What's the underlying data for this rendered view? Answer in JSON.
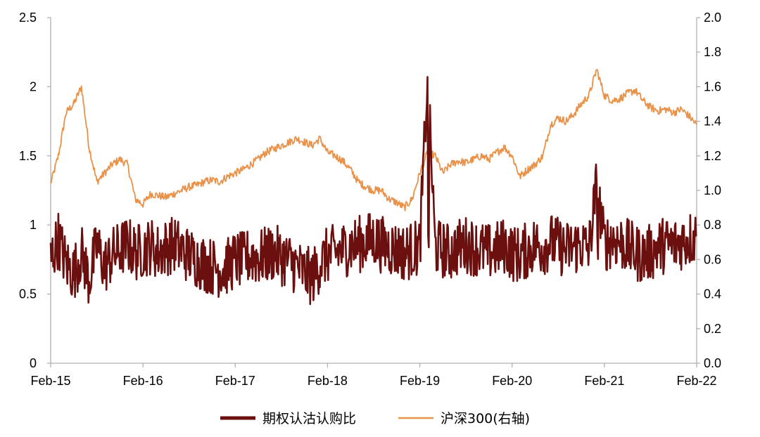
{
  "chart_data": {
    "type": "line",
    "x_ticks": [
      "Feb-15",
      "Feb-16",
      "Feb-17",
      "Feb-18",
      "Feb-19",
      "Feb-20",
      "Feb-21",
      "Feb-22"
    ],
    "y_left": {
      "ticks": [
        "0",
        "0.5",
        "1",
        "1.5",
        "2",
        "2.5"
      ],
      "ylim": [
        0,
        2.5
      ]
    },
    "y_right": {
      "ticks": [
        "0.0",
        "0.2",
        "0.4",
        "0.6",
        "0.8",
        "1.0",
        "1.2",
        "1.4",
        "1.6",
        "1.8",
        "2.0"
      ],
      "ylim": [
        0,
        2.0
      ]
    },
    "grid": false,
    "legend_position": "bottom",
    "series": [
      {
        "name": "期权认沽认购比",
        "axis": "left",
        "color": "#6b0f0f",
        "x": [
          "2015-02",
          "2015-03",
          "2015-04",
          "2015-05",
          "2015-06",
          "2015-07",
          "2015-08",
          "2015-09",
          "2015-10",
          "2015-11",
          "2015-12",
          "2016-01",
          "2016-02",
          "2016-03",
          "2016-04",
          "2016-05",
          "2016-06",
          "2016-07",
          "2016-08",
          "2016-09",
          "2016-10",
          "2016-11",
          "2016-12",
          "2017-01",
          "2017-02",
          "2017-03",
          "2017-04",
          "2017-05",
          "2017-06",
          "2017-07",
          "2017-08",
          "2017-09",
          "2017-10",
          "2017-11",
          "2017-12",
          "2018-01",
          "2018-02",
          "2018-03",
          "2018-04",
          "2018-05",
          "2018-06",
          "2018-07",
          "2018-08",
          "2018-09",
          "2018-10",
          "2018-11",
          "2018-12",
          "2019-01",
          "2019-02",
          "2019-03",
          "2019-04",
          "2019-05",
          "2019-06",
          "2019-07",
          "2019-08",
          "2019-09",
          "2019-10",
          "2019-11",
          "2019-12",
          "2020-01",
          "2020-02",
          "2020-03",
          "2020-04",
          "2020-05",
          "2020-06",
          "2020-07",
          "2020-08",
          "2020-09",
          "2020-10",
          "2020-11",
          "2020-12",
          "2021-01",
          "2021-02",
          "2021-03",
          "2021-04",
          "2021-05",
          "2021-06",
          "2021-07",
          "2021-08",
          "2021-09",
          "2021-10",
          "2021-11",
          "2021-12",
          "2022-01",
          "2022-02"
        ],
        "y": [
          0.75,
          0.9,
          0.72,
          0.65,
          0.8,
          0.6,
          0.85,
          0.7,
          0.78,
          0.82,
          0.86,
          0.8,
          0.82,
          0.85,
          0.8,
          0.84,
          0.86,
          0.82,
          0.78,
          0.75,
          0.72,
          0.7,
          0.68,
          0.7,
          0.75,
          0.74,
          0.78,
          0.76,
          0.78,
          0.8,
          0.77,
          0.74,
          0.7,
          0.65,
          0.62,
          0.72,
          0.78,
          0.8,
          0.82,
          0.85,
          0.86,
          0.88,
          0.9,
          0.86,
          0.84,
          0.82,
          0.8,
          0.82,
          0.84,
          2.07,
          0.84,
          0.82,
          0.8,
          0.84,
          0.86,
          0.84,
          0.82,
          0.8,
          0.82,
          0.85,
          0.8,
          0.78,
          0.82,
          0.86,
          0.84,
          0.88,
          0.85,
          0.82,
          0.84,
          0.86,
          0.82,
          1.3,
          0.86,
          0.9,
          0.88,
          0.84,
          0.8,
          0.78,
          0.8,
          0.84,
          0.86,
          0.85,
          0.88,
          0.9,
          0.92
        ]
      },
      {
        "name": "沪深300(右轴)",
        "axis": "right",
        "color": "#e8924a",
        "x": [
          "2015-02",
          "2015-03",
          "2015-04",
          "2015-05",
          "2015-06",
          "2015-07",
          "2015-08",
          "2015-09",
          "2015-10",
          "2015-11",
          "2015-12",
          "2016-01",
          "2016-02",
          "2016-03",
          "2016-04",
          "2016-05",
          "2016-06",
          "2016-07",
          "2016-08",
          "2016-09",
          "2016-10",
          "2016-11",
          "2016-12",
          "2017-01",
          "2017-02",
          "2017-03",
          "2017-04",
          "2017-05",
          "2017-06",
          "2017-07",
          "2017-08",
          "2017-09",
          "2017-10",
          "2017-11",
          "2017-12",
          "2018-01",
          "2018-02",
          "2018-03",
          "2018-04",
          "2018-05",
          "2018-06",
          "2018-07",
          "2018-08",
          "2018-09",
          "2018-10",
          "2018-11",
          "2018-12",
          "2019-01",
          "2019-02",
          "2019-03",
          "2019-04",
          "2019-05",
          "2019-06",
          "2019-07",
          "2019-08",
          "2019-09",
          "2019-10",
          "2019-11",
          "2019-12",
          "2020-01",
          "2020-02",
          "2020-03",
          "2020-04",
          "2020-05",
          "2020-06",
          "2020-07",
          "2020-08",
          "2020-09",
          "2020-10",
          "2020-11",
          "2020-12",
          "2021-01",
          "2021-02",
          "2021-03",
          "2021-04",
          "2021-05",
          "2021-06",
          "2021-07",
          "2021-08",
          "2021-09",
          "2021-10",
          "2021-11",
          "2021-12",
          "2022-01",
          "2022-02"
        ],
        "y": [
          1.04,
          1.2,
          1.45,
          1.5,
          1.6,
          1.25,
          1.05,
          1.1,
          1.15,
          1.18,
          1.15,
          0.95,
          0.92,
          0.98,
          0.97,
          0.96,
          0.98,
          1.0,
          1.02,
          1.03,
          1.05,
          1.06,
          1.05,
          1.08,
          1.1,
          1.12,
          1.15,
          1.18,
          1.22,
          1.24,
          1.26,
          1.28,
          1.3,
          1.28,
          1.26,
          1.3,
          1.22,
          1.2,
          1.17,
          1.12,
          1.05,
          1.02,
          1.0,
          1.0,
          0.95,
          0.93,
          0.9,
          0.95,
          1.1,
          1.22,
          1.2,
          1.1,
          1.15,
          1.17,
          1.16,
          1.18,
          1.2,
          1.18,
          1.22,
          1.25,
          1.2,
          1.08,
          1.12,
          1.15,
          1.2,
          1.38,
          1.42,
          1.4,
          1.44,
          1.5,
          1.55,
          1.7,
          1.55,
          1.52,
          1.53,
          1.56,
          1.58,
          1.52,
          1.48,
          1.46,
          1.47,
          1.45,
          1.47,
          1.43,
          1.38
        ]
      }
    ]
  }
}
